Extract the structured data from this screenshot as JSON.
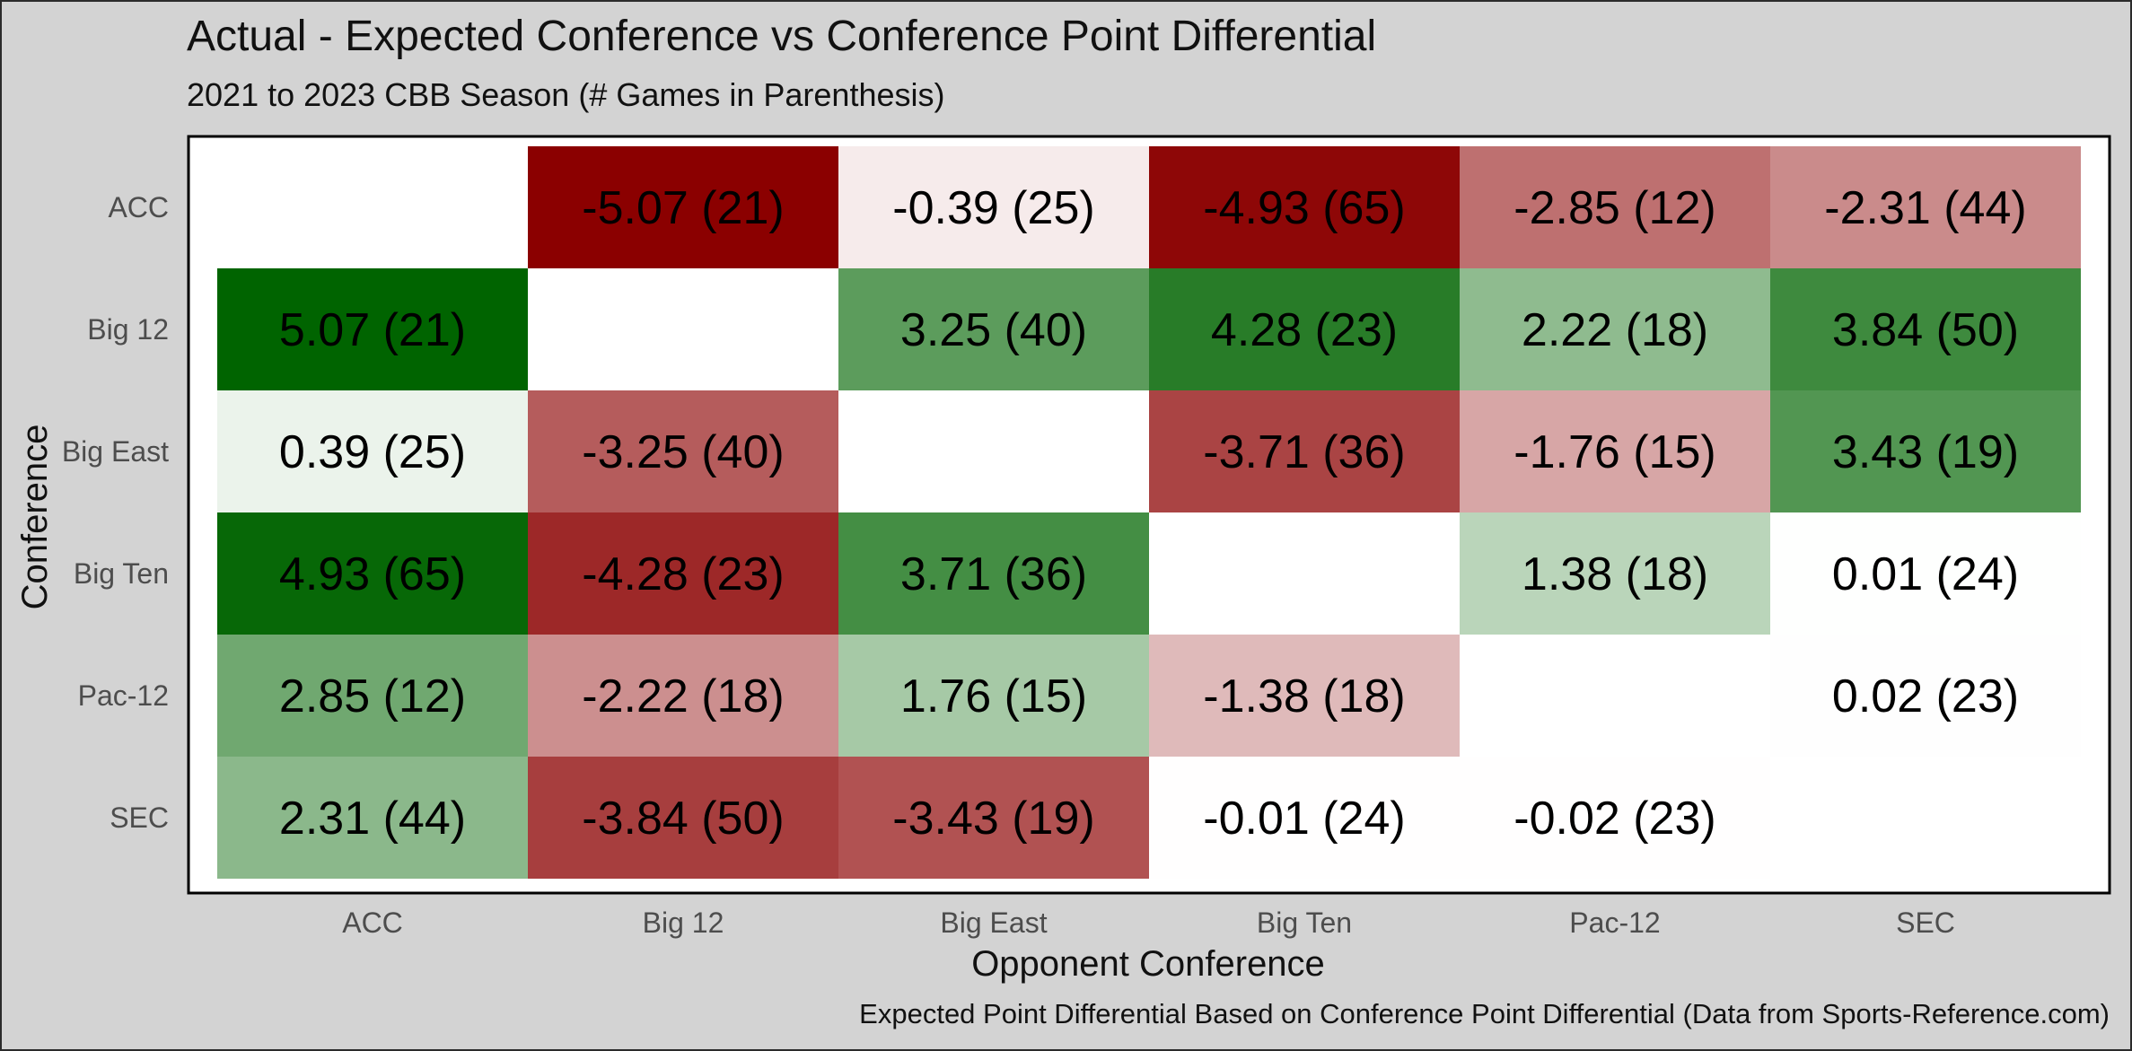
{
  "chart_data": {
    "type": "heatmap",
    "title": "Actual - Expected Conference vs Conference Point Differential",
    "subtitle": "2021 to 2023 CBB Season (# Games in Parenthesis)",
    "caption": "Expected Point Differential Based on Conference Point Differential (Data from Sports-Reference.com)",
    "xlabel": "Opponent Conference",
    "ylabel": "Conference",
    "x_categories": [
      "ACC",
      "Big 12",
      "Big East",
      "Big Ten",
      "Pac-12",
      "SEC"
    ],
    "y_categories": [
      "ACC",
      "Big 12",
      "Big East",
      "Big Ten",
      "Pac-12",
      "SEC"
    ],
    "color_scale": {
      "low": "#8b0000",
      "mid": "#ffffff",
      "high": "#006400",
      "range": [
        -5.07,
        5.07
      ]
    },
    "cells": [
      {
        "row": "ACC",
        "col": "Big 12",
        "value": -5.07,
        "games": 21,
        "label": "-5.07 (21)"
      },
      {
        "row": "ACC",
        "col": "Big East",
        "value": -0.39,
        "games": 25,
        "label": "-0.39 (25)"
      },
      {
        "row": "ACC",
        "col": "Big Ten",
        "value": -4.93,
        "games": 65,
        "label": "-4.93 (65)"
      },
      {
        "row": "ACC",
        "col": "Pac-12",
        "value": -2.85,
        "games": 12,
        "label": "-2.85 (12)"
      },
      {
        "row": "ACC",
        "col": "SEC",
        "value": -2.31,
        "games": 44,
        "label": "-2.31 (44)"
      },
      {
        "row": "Big 12",
        "col": "ACC",
        "value": 5.07,
        "games": 21,
        "label": "5.07 (21)"
      },
      {
        "row": "Big 12",
        "col": "Big East",
        "value": 3.25,
        "games": 40,
        "label": "3.25 (40)"
      },
      {
        "row": "Big 12",
        "col": "Big Ten",
        "value": 4.28,
        "games": 23,
        "label": "4.28 (23)"
      },
      {
        "row": "Big 12",
        "col": "Pac-12",
        "value": 2.22,
        "games": 18,
        "label": "2.22 (18)"
      },
      {
        "row": "Big 12",
        "col": "SEC",
        "value": 3.84,
        "games": 50,
        "label": "3.84 (50)"
      },
      {
        "row": "Big East",
        "col": "ACC",
        "value": 0.39,
        "games": 25,
        "label": "0.39 (25)"
      },
      {
        "row": "Big East",
        "col": "Big 12",
        "value": -3.25,
        "games": 40,
        "label": "-3.25 (40)"
      },
      {
        "row": "Big East",
        "col": "Big Ten",
        "value": -3.71,
        "games": 36,
        "label": "-3.71 (36)"
      },
      {
        "row": "Big East",
        "col": "Pac-12",
        "value": -1.76,
        "games": 15,
        "label": "-1.76 (15)"
      },
      {
        "row": "Big East",
        "col": "SEC",
        "value": 3.43,
        "games": 19,
        "label": "3.43 (19)"
      },
      {
        "row": "Big Ten",
        "col": "ACC",
        "value": 4.93,
        "games": 65,
        "label": "4.93 (65)"
      },
      {
        "row": "Big Ten",
        "col": "Big 12",
        "value": -4.28,
        "games": 23,
        "label": "-4.28 (23)"
      },
      {
        "row": "Big Ten",
        "col": "Big East",
        "value": 3.71,
        "games": 36,
        "label": "3.71 (36)"
      },
      {
        "row": "Big Ten",
        "col": "Pac-12",
        "value": 1.38,
        "games": 18,
        "label": "1.38 (18)"
      },
      {
        "row": "Big Ten",
        "col": "SEC",
        "value": 0.01,
        "games": 24,
        "label": "0.01 (24)"
      },
      {
        "row": "Pac-12",
        "col": "ACC",
        "value": 2.85,
        "games": 12,
        "label": "2.85 (12)"
      },
      {
        "row": "Pac-12",
        "col": "Big 12",
        "value": -2.22,
        "games": 18,
        "label": "-2.22 (18)"
      },
      {
        "row": "Pac-12",
        "col": "Big East",
        "value": 1.76,
        "games": 15,
        "label": "1.76 (15)"
      },
      {
        "row": "Pac-12",
        "col": "Big Ten",
        "value": -1.38,
        "games": 18,
        "label": "-1.38 (18)"
      },
      {
        "row": "Pac-12",
        "col": "SEC",
        "value": 0.02,
        "games": 23,
        "label": "0.02 (23)"
      },
      {
        "row": "SEC",
        "col": "ACC",
        "value": 2.31,
        "games": 44,
        "label": "2.31 (44)"
      },
      {
        "row": "SEC",
        "col": "Big 12",
        "value": -3.84,
        "games": 50,
        "label": "-3.84 (50)"
      },
      {
        "row": "SEC",
        "col": "Big East",
        "value": -3.43,
        "games": 19,
        "label": "-3.43 (19)"
      },
      {
        "row": "SEC",
        "col": "Big Ten",
        "value": -0.01,
        "games": 24,
        "label": "-0.01 (24)"
      },
      {
        "row": "SEC",
        "col": "Pac-12",
        "value": -0.02,
        "games": 23,
        "label": "-0.02 (23)"
      }
    ]
  }
}
